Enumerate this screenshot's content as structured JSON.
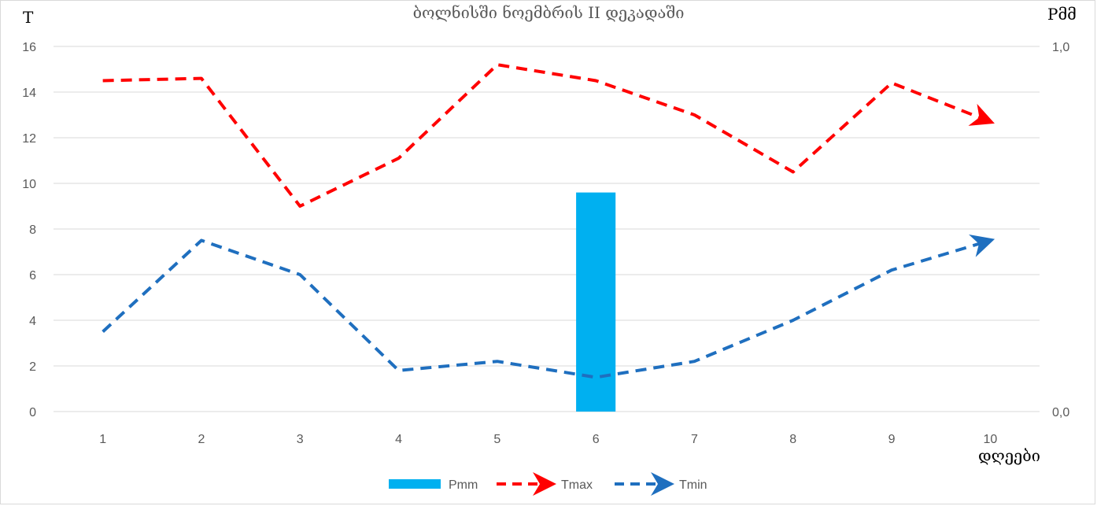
{
  "chart_data": {
    "type": "line",
    "title": "ბოლნისში ნოემბრის II დეკადაში",
    "xlabel": "დღეები",
    "ylabel_left": "T",
    "ylabel_right": "Pმმ",
    "categories": [
      "1",
      "2",
      "3",
      "4",
      "5",
      "6",
      "7",
      "8",
      "9",
      "10"
    ],
    "ylim_left": [
      0,
      16
    ],
    "yticks_left": [
      "0",
      "2",
      "4",
      "6",
      "8",
      "10",
      "12",
      "14",
      "16"
    ],
    "ylim_right": [
      0,
      1.0
    ],
    "yticks_right": [
      "0,0",
      "1,0"
    ],
    "grid": true,
    "legend_position": "bottom",
    "series": [
      {
        "name": "Pmm",
        "type": "bar",
        "axis": "right",
        "color": "#00b0f0",
        "values": [
          0,
          0,
          0,
          0,
          0,
          0.6,
          0,
          0,
          0,
          0
        ]
      },
      {
        "name": "Tmax",
        "type": "line",
        "style": "dashed-arrow",
        "color": "#ff0000",
        "values": [
          14.5,
          14.6,
          9.0,
          11.1,
          15.2,
          14.5,
          13.0,
          10.5,
          14.4,
          12.7
        ]
      },
      {
        "name": "Tmin",
        "type": "line",
        "style": "dashed-arrow",
        "color": "#1f6fbf",
        "values": [
          3.5,
          7.5,
          6.0,
          1.8,
          2.2,
          1.5,
          2.2,
          4.0,
          6.2,
          7.5
        ]
      }
    ]
  }
}
